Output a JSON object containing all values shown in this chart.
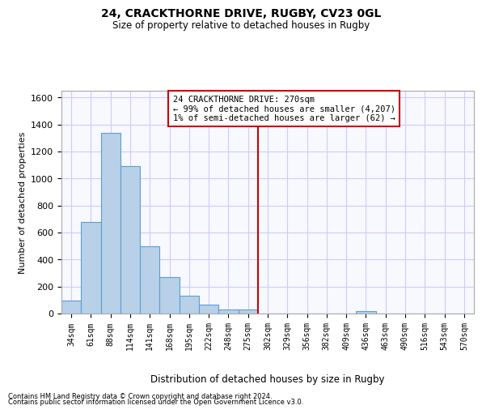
{
  "title_line1": "24, CRACKTHORNE DRIVE, RUGBY, CV23 0GL",
  "title_line2": "Size of property relative to detached houses in Rugby",
  "xlabel": "Distribution of detached houses by size in Rugby",
  "ylabel": "Number of detached properties",
  "footer_line1": "Contains HM Land Registry data © Crown copyright and database right 2024.",
  "footer_line2": "Contains public sector information licensed under the Open Government Licence v3.0.",
  "annotation_title": "24 CRACKTHORNE DRIVE: 270sqm",
  "annotation_line1": "← 99% of detached houses are smaller (4,207)",
  "annotation_line2": "1% of semi-detached houses are larger (62) →",
  "property_size": 270,
  "bin_labels": [
    "34sqm",
    "61sqm",
    "88sqm",
    "114sqm",
    "141sqm",
    "168sqm",
    "195sqm",
    "222sqm",
    "248sqm",
    "275sqm",
    "302sqm",
    "329sqm",
    "356sqm",
    "382sqm",
    "409sqm",
    "436sqm",
    "463sqm",
    "490sqm",
    "516sqm",
    "543sqm",
    "570sqm"
  ],
  "bar_values": [
    95,
    680,
    1340,
    1090,
    500,
    270,
    135,
    65,
    30,
    30,
    0,
    0,
    0,
    0,
    0,
    20,
    0,
    0,
    0,
    0,
    0
  ],
  "bar_color": "#b8d0e8",
  "bar_edge_color": "#5a9fd4",
  "vline_color": "#cc0000",
  "vline_position": 9.5,
  "annotation_box_color": "#cc0000",
  "ylim": [
    0,
    1650
  ],
  "yticks": [
    0,
    200,
    400,
    600,
    800,
    1000,
    1200,
    1400,
    1600
  ],
  "grid_color": "#ccccff",
  "background_color": "#f8f8ff",
  "fig_background": "#ffffff"
}
